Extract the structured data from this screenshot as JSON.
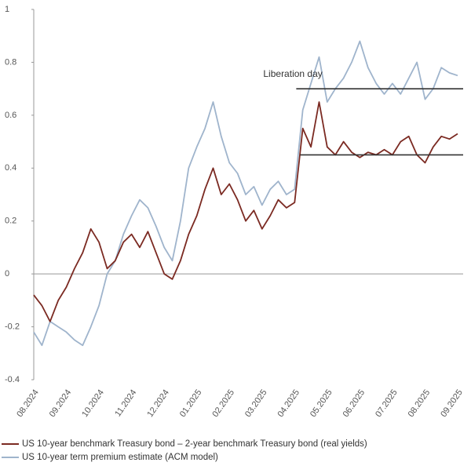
{
  "chart_data": {
    "type": "line",
    "categories": [
      "08.2024",
      null,
      null,
      null,
      "09.2024",
      null,
      null,
      null,
      "10.2024",
      null,
      null,
      null,
      "11.2024",
      null,
      null,
      null,
      "12.2024",
      null,
      null,
      null,
      "01.2025",
      null,
      null,
      null,
      "02.2025",
      null,
      null,
      null,
      "03.2025",
      null,
      null,
      null,
      "04.2025",
      null,
      null,
      null,
      "05.2025",
      null,
      null,
      null,
      "06.2025",
      null,
      null,
      null,
      "07.2025",
      null,
      null,
      null,
      "08.2025",
      null,
      null,
      null,
      "09.2025"
    ],
    "series": [
      {
        "name": "US 10-year benchmark Treasury bond – 2-year benchmark Treasury bond (real yields)",
        "color": "#7b2a22",
        "values": [
          -0.08,
          -0.12,
          -0.18,
          -0.1,
          -0.05,
          0.02,
          0.08,
          0.17,
          0.12,
          0.02,
          0.05,
          0.12,
          0.15,
          0.1,
          0.16,
          0.08,
          0.0,
          -0.02,
          0.05,
          0.15,
          0.22,
          0.32,
          0.4,
          0.3,
          0.34,
          0.28,
          0.2,
          0.24,
          0.17,
          0.22,
          0.28,
          0.25,
          0.27,
          0.55,
          0.48,
          0.65,
          0.48,
          0.45,
          0.5,
          0.46,
          0.44,
          0.46,
          0.45,
          0.47,
          0.45,
          0.5,
          0.52,
          0.45,
          0.42,
          0.48,
          0.52,
          0.51,
          0.53
        ]
      },
      {
        "name": "US 10-year term premium estimate (ACM model)",
        "color": "#9fb4cc",
        "values": [
          -0.22,
          -0.27,
          -0.18,
          -0.2,
          -0.22,
          -0.25,
          -0.27,
          -0.2,
          -0.12,
          0.0,
          0.05,
          0.15,
          0.22,
          0.28,
          0.25,
          0.18,
          0.1,
          0.05,
          0.2,
          0.4,
          0.48,
          0.55,
          0.65,
          0.52,
          0.42,
          0.38,
          0.3,
          0.33,
          0.26,
          0.32,
          0.35,
          0.3,
          0.32,
          0.62,
          0.72,
          0.82,
          0.65,
          0.7,
          0.74,
          0.8,
          0.88,
          0.78,
          0.72,
          0.68,
          0.72,
          0.68,
          0.74,
          0.8,
          0.66,
          0.7,
          0.78,
          0.76,
          0.75
        ]
      }
    ],
    "ylim": [
      -0.4,
      1
    ],
    "yticks": [
      -0.4,
      -0.2,
      0,
      0.2,
      0.4,
      0.6,
      0.8,
      1
    ],
    "grid": false,
    "annotation": "Liberation day",
    "hlines": [
      0.7,
      0.45
    ]
  }
}
